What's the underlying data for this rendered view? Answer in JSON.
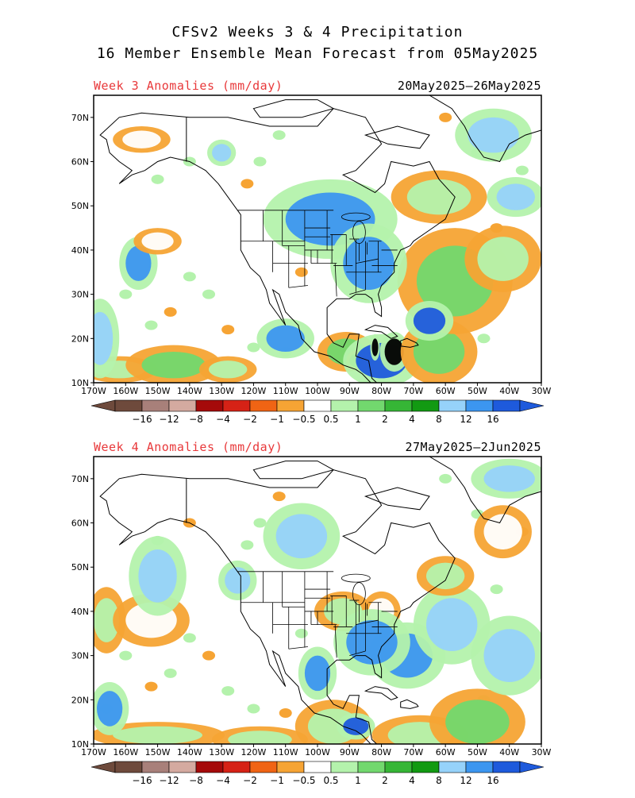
{
  "title_line1": "CFSv2 Weeks 3 & 4 Precipitation",
  "title_line2": "16 Member Ensemble Mean Forecast from 05May2025",
  "panels": [
    {
      "label": "Week 3 Anomalies (mm/day)",
      "dates": "20May2025–26May2025",
      "anomaly_blobs": [
        {
          "lon": -162,
          "lat": 13,
          "cat": 8,
          "rx": 8,
          "ry": 2
        },
        {
          "lon": -145,
          "lat": 14,
          "cat": 9,
          "rx": 10,
          "ry": 3
        },
        {
          "lon": -128,
          "lat": 13,
          "cat": 8,
          "rx": 6,
          "ry": 2
        },
        {
          "lon": -91,
          "lat": 17,
          "cat": 9,
          "rx": 6,
          "ry": 3
        },
        {
          "lon": -88,
          "lat": 15,
          "cat": 10,
          "rx": 2,
          "ry": 1.5
        },
        {
          "lon": -80,
          "lat": 15,
          "cat": 14,
          "rx": 8,
          "ry": 4
        },
        {
          "lon": -76,
          "lat": 17,
          "cat": 15,
          "rx": 3,
          "ry": 3
        },
        {
          "lon": -82,
          "lat": 18,
          "cat": 17,
          "rx": 1,
          "ry": 2
        },
        {
          "lon": -62,
          "lat": 17,
          "cat": 9,
          "rx": 8,
          "ry": 5
        },
        {
          "lon": -57,
          "lat": 33,
          "cat": 9,
          "rx": 12,
          "ry": 8
        },
        {
          "lon": -42,
          "lat": 38,
          "cat": 8,
          "rx": 8,
          "ry": 5
        },
        {
          "lon": -65,
          "lat": 24,
          "cat": 14,
          "rx": 5,
          "ry": 3
        },
        {
          "lon": -62,
          "lat": 52,
          "cat": 8,
          "rx": 10,
          "ry": 4
        },
        {
          "lon": -96,
          "lat": 47,
          "cat": 13,
          "rx": 14,
          "ry": 6
        },
        {
          "lon": -84,
          "lat": 37,
          "cat": 13,
          "rx": 8,
          "ry": 6
        },
        {
          "lon": -156,
          "lat": 37,
          "cat": 13,
          "rx": 4,
          "ry": 4
        },
        {
          "lon": -168,
          "lat": 20,
          "cat": 12,
          "rx": 4,
          "ry": 6
        },
        {
          "lon": -155,
          "lat": 65,
          "cat": 7,
          "rx": 6,
          "ry": 2
        },
        {
          "lon": -45,
          "lat": 66,
          "cat": 12,
          "rx": 8,
          "ry": 4
        },
        {
          "lon": -38,
          "lat": 52,
          "cat": 12,
          "rx": 6,
          "ry": 3
        },
        {
          "lon": -150,
          "lat": 42,
          "cat": 7,
          "rx": 5,
          "ry": 2
        },
        {
          "lon": -130,
          "lat": 62,
          "cat": 12,
          "rx": 3,
          "ry": 2
        },
        {
          "lon": -110,
          "lat": 20,
          "cat": 13,
          "rx": 6,
          "ry": 3
        }
      ]
    },
    {
      "label": "Week 4 Anomalies (mm/day)",
      "dates": "27May2025–2Jun2025",
      "anomaly_blobs": [
        {
          "lon": -166,
          "lat": 38,
          "cat": 8,
          "rx": 4,
          "ry": 5
        },
        {
          "lon": -152,
          "lat": 38,
          "cat": 7,
          "rx": 8,
          "ry": 4
        },
        {
          "lon": -150,
          "lat": 12,
          "cat": 8,
          "rx": 14,
          "ry": 2
        },
        {
          "lon": -118,
          "lat": 11,
          "cat": 8,
          "rx": 10,
          "ry": 2
        },
        {
          "lon": -95,
          "lat": 14,
          "cat": 8,
          "rx": 8,
          "ry": 4
        },
        {
          "lon": -88,
          "lat": 14,
          "cat": 14,
          "rx": 4,
          "ry": 2
        },
        {
          "lon": -68,
          "lat": 12,
          "cat": 8,
          "rx": 10,
          "ry": 3
        },
        {
          "lon": -50,
          "lat": 15,
          "cat": 9,
          "rx": 10,
          "ry": 5
        },
        {
          "lon": -72,
          "lat": 30,
          "cat": 13,
          "rx": 8,
          "ry": 5
        },
        {
          "lon": -58,
          "lat": 37,
          "cat": 12,
          "rx": 8,
          "ry": 6
        },
        {
          "lon": -40,
          "lat": 30,
          "cat": 12,
          "rx": 8,
          "ry": 6
        },
        {
          "lon": -92,
          "lat": 40,
          "cat": 8,
          "rx": 6,
          "ry": 3
        },
        {
          "lon": -80,
          "lat": 40,
          "cat": 7,
          "rx": 4,
          "ry": 3
        },
        {
          "lon": -83,
          "lat": 33,
          "cat": 13,
          "rx": 8,
          "ry": 5
        },
        {
          "lon": -100,
          "lat": 26,
          "cat": 13,
          "rx": 4,
          "ry": 4
        },
        {
          "lon": -150,
          "lat": 48,
          "cat": 12,
          "rx": 6,
          "ry": 6
        },
        {
          "lon": -125,
          "lat": 47,
          "cat": 12,
          "rx": 4,
          "ry": 3
        },
        {
          "lon": -105,
          "lat": 57,
          "cat": 12,
          "rx": 8,
          "ry": 5
        },
        {
          "lon": -60,
          "lat": 48,
          "cat": 8,
          "rx": 6,
          "ry": 3
        },
        {
          "lon": -42,
          "lat": 58,
          "cat": 7,
          "rx": 6,
          "ry": 4
        },
        {
          "lon": -40,
          "lat": 70,
          "cat": 12,
          "rx": 8,
          "ry": 3
        },
        {
          "lon": -165,
          "lat": 18,
          "cat": 13,
          "rx": 4,
          "ry": 4
        }
      ]
    }
  ],
  "map": {
    "lon_range": [
      -170,
      -30
    ],
    "lat_range": [
      10,
      75
    ],
    "lon_ticks": [
      "170W",
      "160W",
      "150W",
      "140W",
      "130W",
      "120W",
      "110W",
      "100W",
      "90W",
      "80W",
      "70W",
      "60W",
      "50W",
      "40W",
      "30W"
    ],
    "lat_ticks": [
      "10N",
      "20N",
      "30N",
      "40N",
      "50N",
      "60N",
      "70N"
    ]
  },
  "colorbar": {
    "labels": [
      "−16",
      "−12",
      "−8",
      "−4",
      "−2",
      "−1",
      "−0.5",
      "0.5",
      "1",
      "2",
      "4",
      "8",
      "12",
      "16"
    ],
    "colors": [
      "#6e4a3c",
      "#a8807a",
      "#d4aaa0",
      "#a50a0a",
      "#d62216",
      "#f06414",
      "#f6a434",
      "#ffffff",
      "#b4f2ac",
      "#72d86e",
      "#36b636",
      "#129a12",
      "#96d2fa",
      "#3c96f0",
      "#1e5adc"
    ],
    "extend_low_color": "#6e4a3c",
    "extend_high_color": "#1e5adc"
  }
}
